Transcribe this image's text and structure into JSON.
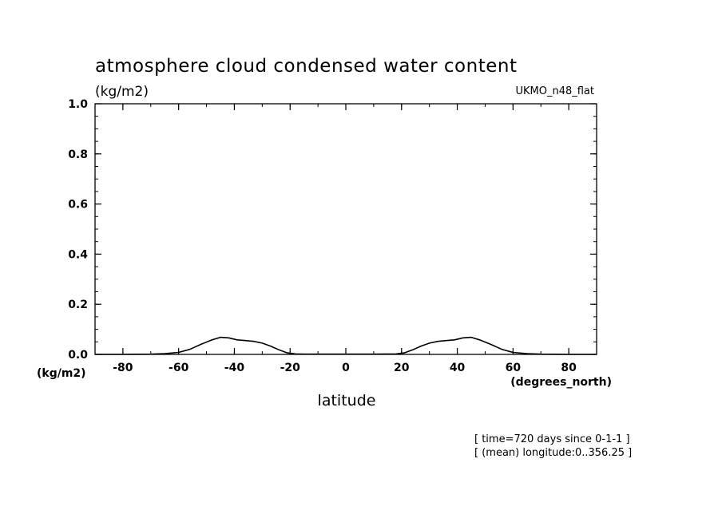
{
  "chart_data": {
    "type": "line",
    "title": "atmosphere cloud condensed water content",
    "units_label": "(kg/m2)",
    "model_label": "UKMO_n48_flat",
    "xlabel": "latitude",
    "x_units": "(degrees_north)",
    "y_units": "(kg/m2)",
    "xlim": [
      -90,
      90
    ],
    "ylim": [
      0,
      1.0
    ],
    "x_ticks": [
      -80,
      -60,
      -40,
      -20,
      0,
      20,
      40,
      60,
      80
    ],
    "x_tick_labels": [
      "-80",
      "-60",
      "-40",
      "-20",
      "0",
      "20",
      "40",
      "60",
      "80"
    ],
    "y_ticks": [
      0,
      0.2,
      0.4,
      0.6,
      0.8,
      1.0
    ],
    "y_tick_labels": [
      "0.0",
      "0.2",
      "0.4",
      "0.6",
      "0.8",
      "1.0"
    ],
    "annotations": [
      "[ time=720 days since 0-1-1 ]",
      "[ (mean) longitude:0..356.25 ]"
    ],
    "series": [
      {
        "x": [
          -90,
          -85,
          -80,
          -75,
          -70,
          -65,
          -60,
          -56,
          -52,
          -48,
          -45,
          -42,
          -39,
          -36,
          -33,
          -30,
          -27,
          -24,
          -21,
          -18,
          -15,
          -10,
          0,
          10,
          18,
          21,
          24,
          27,
          30,
          33,
          36,
          39,
          42,
          45,
          48,
          52,
          56,
          60,
          65,
          70,
          75,
          80,
          85,
          90
        ],
        "y": [
          0,
          0,
          0,
          0.0005,
          0.001,
          0.003,
          0.008,
          0.02,
          0.04,
          0.058,
          0.068,
          0.066,
          0.058,
          0.055,
          0.052,
          0.045,
          0.033,
          0.018,
          0.006,
          0.002,
          0.001,
          0.001,
          0.001,
          0.001,
          0.002,
          0.006,
          0.018,
          0.033,
          0.045,
          0.052,
          0.055,
          0.058,
          0.066,
          0.068,
          0.058,
          0.04,
          0.02,
          0.008,
          0.003,
          0.001,
          0.0005,
          0,
          0,
          0
        ]
      }
    ]
  }
}
